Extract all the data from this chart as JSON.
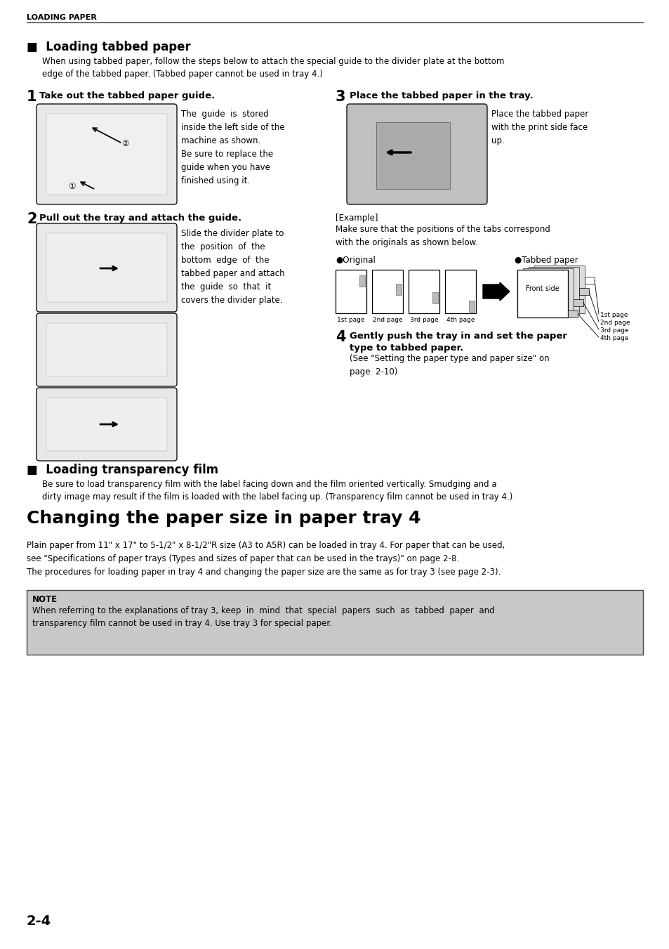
{
  "page_bg": "#ffffff",
  "header_text": "LOADING PAPER",
  "section1_title": "■  Loading tabbed paper",
  "section1_intro": "When using tabbed paper, follow the steps below to attach the special guide to the divider plate at the bottom\nedge of the tabbed paper. (Tabbed paper cannot be used in tray 4.)",
  "step1_num": "1",
  "step1_title": "Take out the tabbed paper guide.",
  "step1_desc": "The  guide  is  stored\ninside the left side of the\nmachine as shown.\nBe sure to replace the\nguide when you have\nfinished using it.",
  "step2_num": "2",
  "step2_title": "Pull out the tray and attach the guide.",
  "step2_desc": "Slide the divider plate to\nthe  position  of  the\nbottom  edge  of  the\ntabbed paper and attach\nthe  guide  so  that  it\ncovers the divider plate.",
  "step3_num": "3",
  "step3_title": "Place the tabbed paper in the tray.",
  "step3_desc": "Place the tabbed paper\nwith the print side face\nup.",
  "example_label": "[Example]",
  "example_desc": "Make sure that the positions of the tabs correspond\nwith the originals as shown below.",
  "original_label": "●Original",
  "tabbed_label": "●Tabbed paper",
  "page_labels": [
    "1st page",
    "2nd page",
    "3rd page",
    "4th page"
  ],
  "tabbed_page_labels": [
    "1st page",
    "2nd page",
    "3rd page",
    "4th page"
  ],
  "front_side_label": "Front side",
  "step4_num": "4",
  "step4_title": "Gently push the tray in and set the paper\ntype to tabbed paper.",
  "step4_desc": "(See \"Setting the paper type and paper size\" on\npage  2-10)",
  "section2_title": "■  Loading transparency film",
  "section2_desc": "Be sure to load transparency film with the label facing down and the film oriented vertically. Smudging and a\ndirty image may result if the film is loaded with the label facing up. (Transparency film cannot be used in tray 4.)",
  "section3_title": "Changing the paper size in paper tray 4",
  "section3_desc": "Plain paper from 11\" x 17\" to 5-1/2\" x 8-1/2\"R size (A3 to A5R) can be loaded in tray 4. For paper that can be used,\nsee \"Specifications of paper trays (Types and sizes of paper that can be used in the trays)\" on page 2-8.\nThe procedures for loading paper in tray 4 and changing the paper size are the same as for tray 3 (see page 2-3).",
  "note_label": "NOTE",
  "note_text": "When referring to the explanations of tray 3, keep  in  mind  that  special  papers  such  as  tabbed  paper  and\ntransparency film cannot be used in tray 4. Use tray 3 for special paper.",
  "page_number": "2-4",
  "note_bg": "#c8c8c8",
  "note_border": "#444444",
  "img_bg_light": "#eeeeee",
  "img_bg_dark": "#cccccc",
  "img_border": "#222222"
}
